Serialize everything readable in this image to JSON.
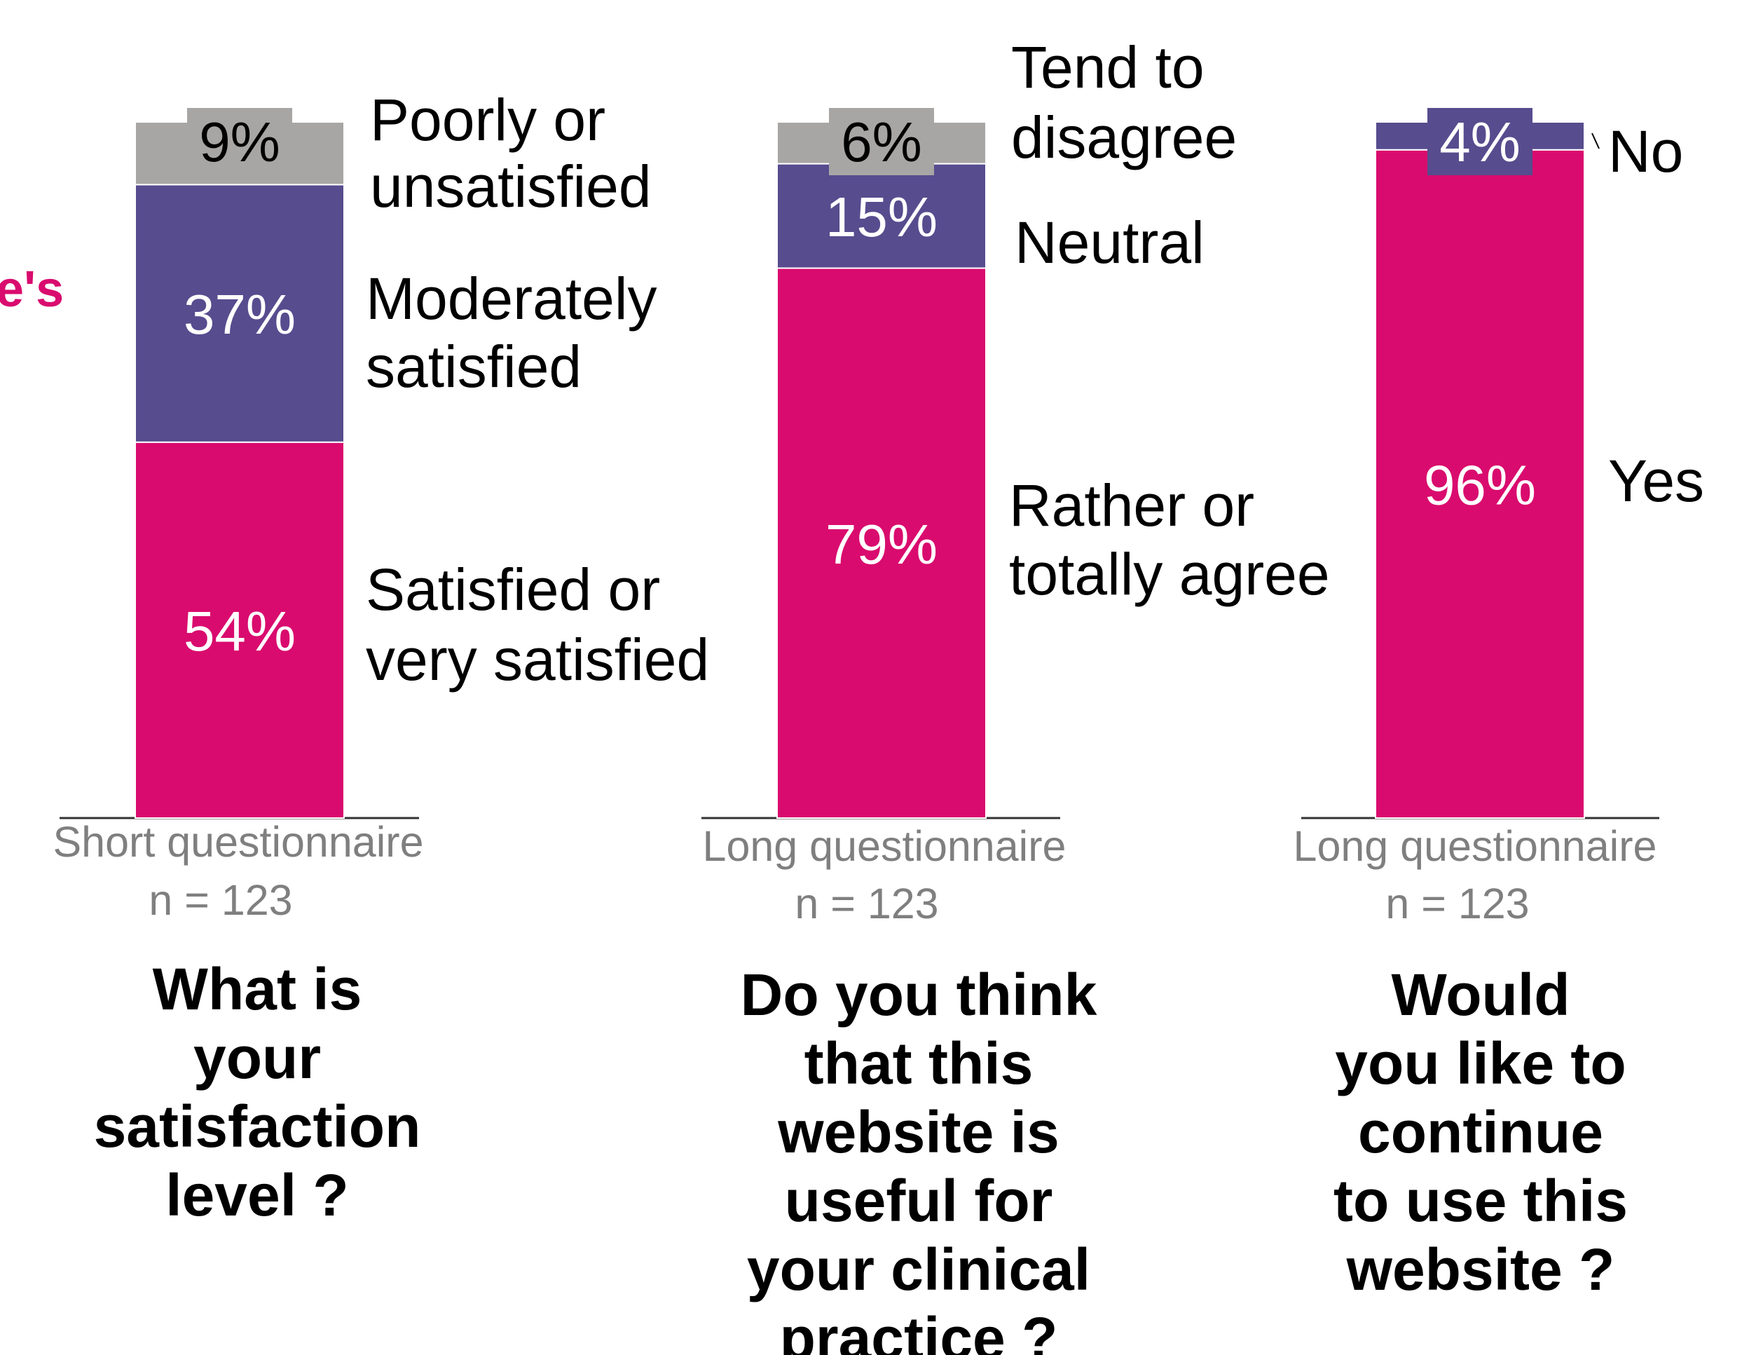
{
  "colors": {
    "pink": "#D90B6E",
    "purple": "#574C8E",
    "gray": "#A8A6A5",
    "axis": "#333333",
    "subtitle": "#7f7f7f"
  },
  "cut_label": "e's",
  "chart_data": [
    {
      "type": "bar",
      "stacked": true,
      "unit": "%",
      "category": "Short questionnaire",
      "n_label": "n = 123",
      "question": [
        "What is",
        "your",
        "satisfaction",
        "level ?"
      ],
      "series": [
        {
          "name": [
            "Satisfied or",
            "very satisfied"
          ],
          "value": 54,
          "color": "#D90B6E",
          "label": "54%"
        },
        {
          "name": [
            "Moderately",
            "satisfied"
          ],
          "value": 37,
          "color": "#574C8E",
          "label": "37%"
        },
        {
          "name": [
            "Poorly or",
            "unsatisfied"
          ],
          "value": 9,
          "color": "#A8A6A5",
          "label": "9%"
        }
      ]
    },
    {
      "type": "bar",
      "stacked": true,
      "unit": "%",
      "category": "Long questionnaire",
      "n_label": "n = 123",
      "question": [
        "Do you think",
        "that this",
        "website is",
        "useful for",
        "your clinical",
        "practice ?"
      ],
      "series": [
        {
          "name": [
            "Rather or",
            "totally agree"
          ],
          "value": 79,
          "color": "#D90B6E",
          "label": "79%"
        },
        {
          "name": [
            "Neutral"
          ],
          "value": 15,
          "color": "#574C8E",
          "label": "15%"
        },
        {
          "name": [
            "Tend to",
            "disagree"
          ],
          "value": 6,
          "color": "#A8A6A5",
          "label": "6%"
        }
      ]
    },
    {
      "type": "bar",
      "stacked": true,
      "unit": "%",
      "category": "Long questionnaire",
      "n_label": "n = 123",
      "question": [
        "Would",
        "you like to",
        "continue",
        "to use this",
        "website ?"
      ],
      "series": [
        {
          "name": [
            "Yes"
          ],
          "value": 96,
          "color": "#D90B6E",
          "label": "96%"
        },
        {
          "name": [
            "No"
          ],
          "value": 4,
          "color": "#574C8E",
          "label": "4%"
        }
      ]
    }
  ]
}
